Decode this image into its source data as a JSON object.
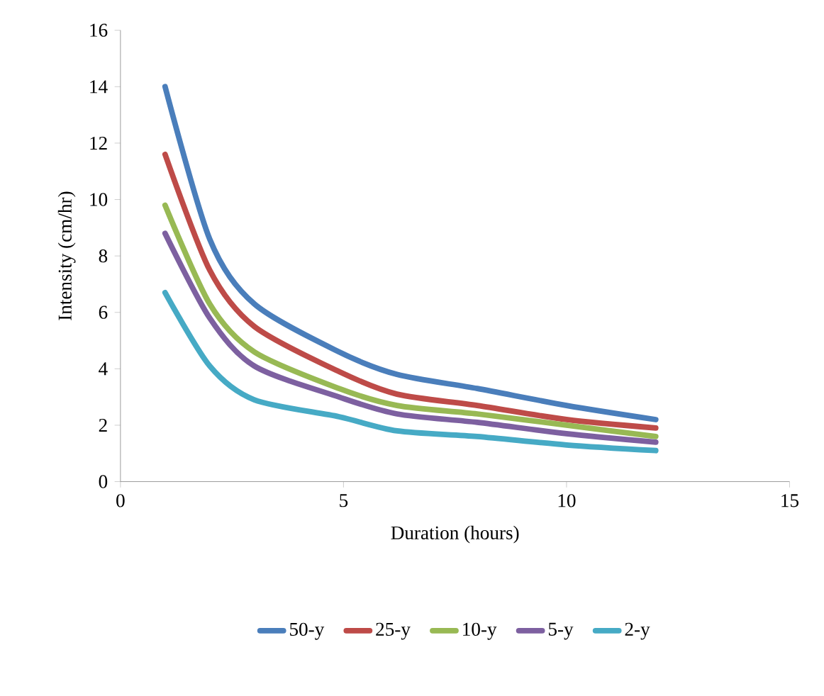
{
  "chart_data": {
    "type": "line",
    "xlabel": "Duration (hours)",
    "ylabel": "Intensity (cm/hr)",
    "x": [
      1,
      2,
      3,
      4.9,
      6.2,
      8,
      10,
      12
    ],
    "series": [
      {
        "name": "50-y",
        "color": "#4a7ebb",
        "values": [
          14.0,
          8.6,
          6.3,
          4.6,
          3.8,
          3.3,
          2.7,
          2.2
        ]
      },
      {
        "name": "25-y",
        "color": "#be4b48",
        "values": [
          11.6,
          7.5,
          5.5,
          3.9,
          3.1,
          2.7,
          2.2,
          1.9
        ]
      },
      {
        "name": "10-y",
        "color": "#98b954",
        "values": [
          9.8,
          6.3,
          4.6,
          3.3,
          2.7,
          2.4,
          2.0,
          1.6
        ]
      },
      {
        "name": "5-y",
        "color": "#7d60a0",
        "values": [
          8.8,
          5.8,
          4.1,
          3.0,
          2.4,
          2.1,
          1.7,
          1.4
        ]
      },
      {
        "name": "2-y",
        "color": "#46aac5",
        "values": [
          6.7,
          4.1,
          2.9,
          2.3,
          1.8,
          1.6,
          1.3,
          1.1
        ]
      }
    ],
    "xlim": [
      0,
      15
    ],
    "xticks": [
      0,
      5,
      10,
      15
    ],
    "ylim": [
      0,
      16
    ],
    "yticks": [
      0,
      2,
      4,
      6,
      8,
      10,
      12,
      14,
      16
    ],
    "grid": false,
    "legend": "bottom",
    "marker": "none",
    "line_style": "solid"
  }
}
